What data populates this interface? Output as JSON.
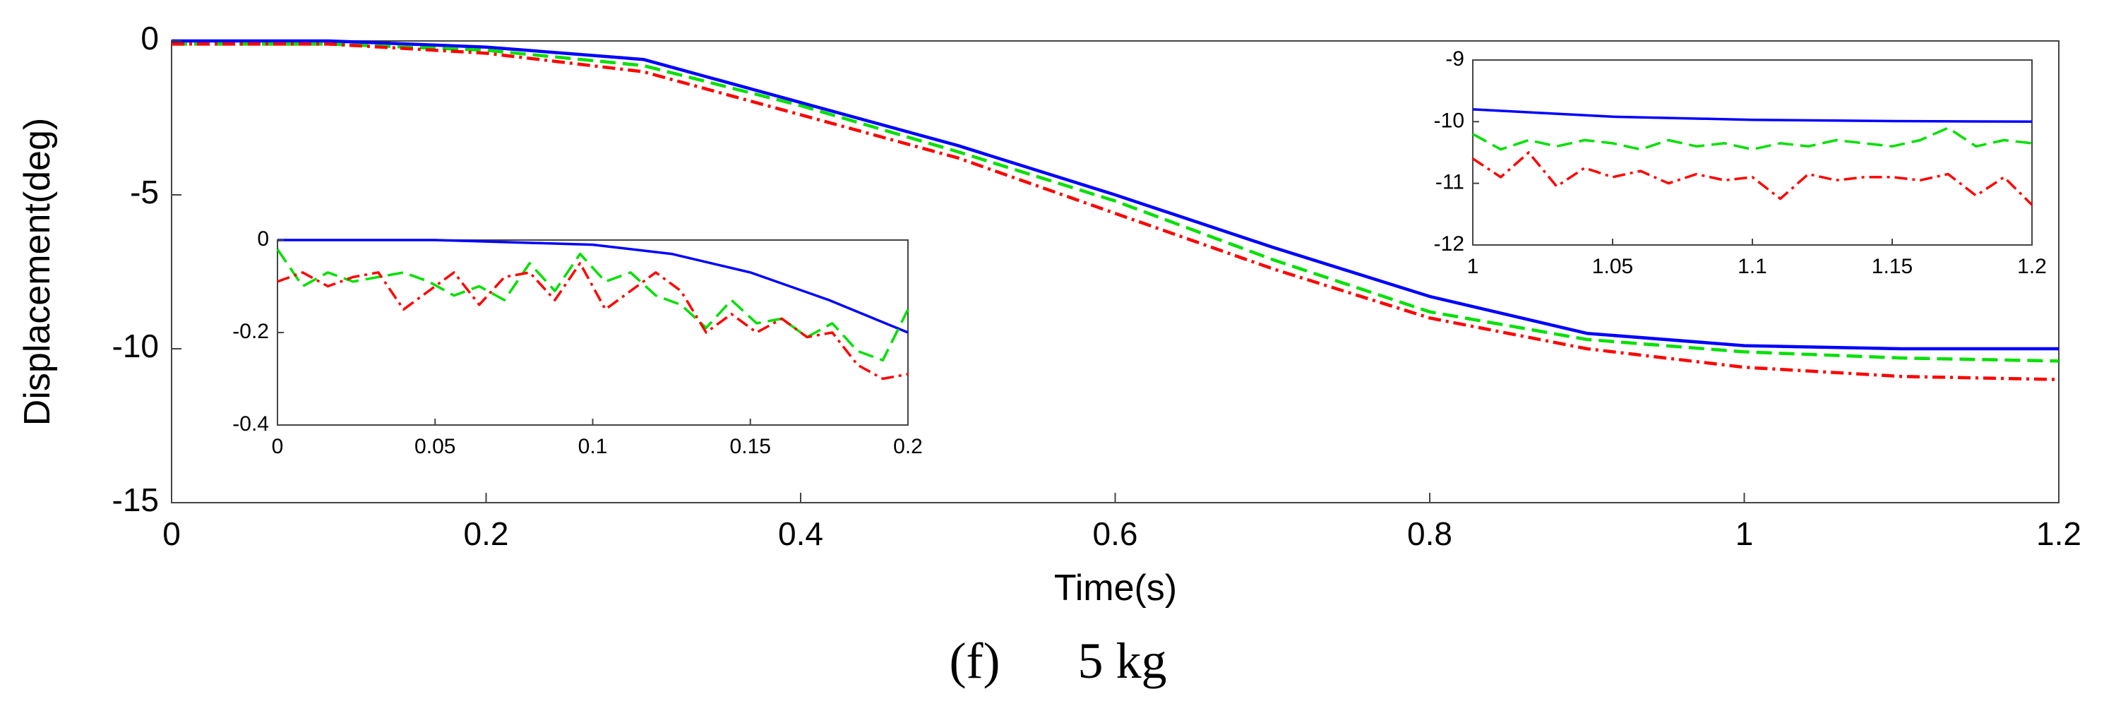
{
  "chart_data": [
    {
      "type": "line",
      "name": "main",
      "xlabel": "Time(s)",
      "ylabel": "Displacement(deg)",
      "xlim": [
        0,
        1.2
      ],
      "ylim": [
        -15,
        0
      ],
      "xticks": [
        0,
        0.2,
        0.4,
        0.6,
        0.8,
        1,
        1.2
      ],
      "xtick_labels": [
        "0",
        "0.2",
        "0.4",
        "0.6",
        "0.8",
        "1",
        "1.2"
      ],
      "yticks": [
        -15,
        -10,
        -5,
        0
      ],
      "ytick_labels": [
        "-15",
        "-10",
        "-5",
        "0"
      ],
      "grid": false,
      "series": [
        {
          "name": "reference",
          "color": "#0000ff",
          "style": "solid",
          "x": [
            0,
            0.1,
            0.2,
            0.3,
            0.4,
            0.5,
            0.6,
            0.7,
            0.8,
            0.9,
            1.0,
            1.1,
            1.2
          ],
          "y": [
            0,
            0,
            -0.2,
            -0.6,
            -2.0,
            -3.4,
            -5.0,
            -6.7,
            -8.3,
            -9.5,
            -9.9,
            -10.0,
            -10.0
          ]
        },
        {
          "name": "green-dashed",
          "color": "#00e000",
          "style": "dashed",
          "x": [
            0,
            0.1,
            0.2,
            0.3,
            0.4,
            0.5,
            0.6,
            0.7,
            0.8,
            0.9,
            1.0,
            1.1,
            1.2
          ],
          "y": [
            -0.1,
            -0.1,
            -0.3,
            -0.8,
            -2.1,
            -3.6,
            -5.2,
            -7.1,
            -8.8,
            -9.7,
            -10.1,
            -10.3,
            -10.4
          ]
        },
        {
          "name": "red-dashdot",
          "color": "#ff0000",
          "style": "dashdot",
          "x": [
            0,
            0.1,
            0.2,
            0.3,
            0.4,
            0.5,
            0.6,
            0.7,
            0.8,
            0.9,
            1.0,
            1.1,
            1.2
          ],
          "y": [
            -0.1,
            -0.1,
            -0.4,
            -1.0,
            -2.4,
            -3.8,
            -5.6,
            -7.4,
            -9.0,
            -10.0,
            -10.6,
            -10.9,
            -11.0
          ]
        }
      ]
    },
    {
      "type": "line",
      "name": "inset-left",
      "xlim": [
        0,
        0.2
      ],
      "ylim": [
        -0.4,
        0
      ],
      "xticks": [
        0,
        0.05,
        0.1,
        0.15,
        0.2
      ],
      "xtick_labels": [
        "0",
        "0.05",
        "0.1",
        "0.15",
        "0.2"
      ],
      "yticks": [
        -0.4,
        -0.2,
        0
      ],
      "ytick_labels": [
        "-0.4",
        "-0.2",
        "0"
      ],
      "series": [
        {
          "name": "reference",
          "color": "#0000ff",
          "style": "solid",
          "x": [
            0,
            0.05,
            0.1,
            0.125,
            0.15,
            0.175,
            0.2
          ],
          "y": [
            0,
            0,
            -0.01,
            -0.03,
            -0.07,
            -0.13,
            -0.2
          ]
        },
        {
          "name": "green-dashed",
          "color": "#00e000",
          "style": "dashed",
          "x": [
            0,
            0.008,
            0.016,
            0.024,
            0.032,
            0.04,
            0.048,
            0.056,
            0.064,
            0.072,
            0.08,
            0.088,
            0.096,
            0.104,
            0.112,
            0.12,
            0.128,
            0.136,
            0.144,
            0.152,
            0.16,
            0.168,
            0.176,
            0.184,
            0.192,
            0.2
          ],
          "y": [
            -0.02,
            -0.1,
            -0.07,
            -0.09,
            -0.08,
            -0.07,
            -0.09,
            -0.12,
            -0.1,
            -0.13,
            -0.05,
            -0.11,
            -0.03,
            -0.09,
            -0.07,
            -0.12,
            -0.14,
            -0.19,
            -0.13,
            -0.18,
            -0.17,
            -0.21,
            -0.18,
            -0.24,
            -0.26,
            -0.15
          ]
        },
        {
          "name": "red-dashdot",
          "color": "#ff0000",
          "style": "dashdot",
          "x": [
            0,
            0.008,
            0.016,
            0.024,
            0.032,
            0.04,
            0.048,
            0.056,
            0.064,
            0.072,
            0.08,
            0.088,
            0.096,
            0.104,
            0.112,
            0.12,
            0.128,
            0.136,
            0.144,
            0.152,
            0.16,
            0.168,
            0.176,
            0.184,
            0.192,
            0.2
          ],
          "y": [
            -0.09,
            -0.07,
            -0.1,
            -0.08,
            -0.07,
            -0.15,
            -0.11,
            -0.07,
            -0.14,
            -0.08,
            -0.07,
            -0.13,
            -0.05,
            -0.15,
            -0.11,
            -0.07,
            -0.11,
            -0.2,
            -0.16,
            -0.2,
            -0.17,
            -0.21,
            -0.2,
            -0.27,
            -0.3,
            -0.29
          ]
        }
      ]
    },
    {
      "type": "line",
      "name": "inset-right",
      "xlim": [
        1,
        1.2
      ],
      "ylim": [
        -12,
        -9
      ],
      "xticks": [
        1,
        1.05,
        1.1,
        1.15,
        1.2
      ],
      "xtick_labels": [
        "1",
        "1.05",
        "1.1",
        "1.15",
        "1.2"
      ],
      "yticks": [
        -12,
        -11,
        -10,
        -9
      ],
      "ytick_labels": [
        "-12",
        "-11",
        "-10",
        "-9"
      ],
      "series": [
        {
          "name": "reference",
          "color": "#0000ff",
          "style": "solid",
          "x": [
            1,
            1.05,
            1.1,
            1.15,
            1.2
          ],
          "y": [
            -9.8,
            -9.92,
            -9.97,
            -9.99,
            -10.0
          ]
        },
        {
          "name": "green-dashed",
          "color": "#00e000",
          "style": "dashed",
          "x": [
            1,
            1.01,
            1.02,
            1.03,
            1.04,
            1.05,
            1.06,
            1.07,
            1.08,
            1.09,
            1.1,
            1.11,
            1.12,
            1.13,
            1.14,
            1.15,
            1.16,
            1.17,
            1.18,
            1.19,
            1.2
          ],
          "y": [
            -10.2,
            -10.45,
            -10.3,
            -10.4,
            -10.3,
            -10.35,
            -10.45,
            -10.3,
            -10.4,
            -10.35,
            -10.45,
            -10.35,
            -10.4,
            -10.3,
            -10.35,
            -10.4,
            -10.3,
            -10.1,
            -10.4,
            -10.3,
            -10.35
          ]
        },
        {
          "name": "red-dashdot",
          "color": "#ff0000",
          "style": "dashdot",
          "x": [
            1,
            1.01,
            1.02,
            1.03,
            1.04,
            1.05,
            1.06,
            1.07,
            1.08,
            1.09,
            1.1,
            1.11,
            1.12,
            1.13,
            1.14,
            1.15,
            1.16,
            1.17,
            1.18,
            1.19,
            1.2
          ],
          "y": [
            -10.6,
            -10.9,
            -10.5,
            -11.05,
            -10.75,
            -10.9,
            -10.8,
            -11.0,
            -10.85,
            -10.95,
            -10.9,
            -11.25,
            -10.85,
            -10.95,
            -10.9,
            -10.9,
            -10.95,
            -10.85,
            -11.2,
            -10.9,
            -11.35
          ]
        }
      ]
    }
  ],
  "caption": {
    "label": "(f)",
    "text": "5 kg"
  }
}
